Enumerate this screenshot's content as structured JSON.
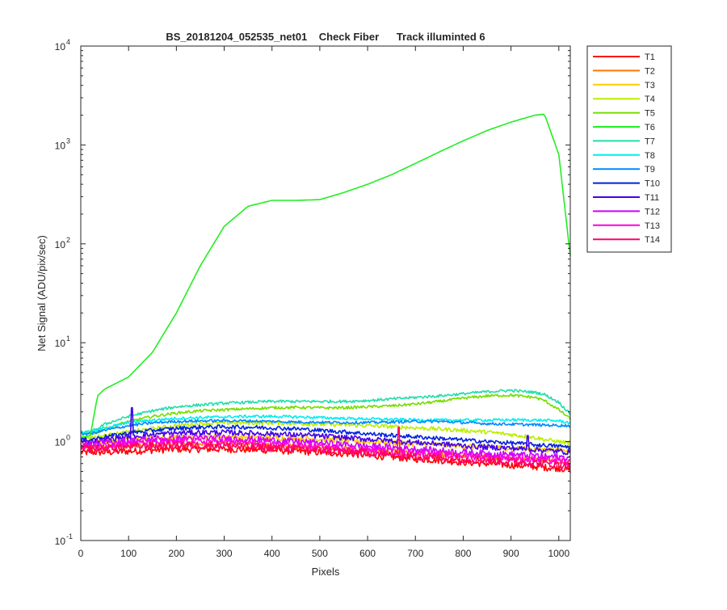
{
  "chart_data": {
    "type": "line",
    "title": "BS_20181204_052535_net01    Check Fiber      Track illuminted 6",
    "xlabel": "Pixels",
    "ylabel": "Net Signal (ADU/pix/sec)",
    "xlim": [
      0,
      1024
    ],
    "ylim": [
      0.1,
      10000
    ],
    "yscale": "log",
    "grid": false,
    "legend_position": "outside-top-right",
    "x_ticks": [
      0,
      100,
      200,
      300,
      400,
      500,
      600,
      700,
      800,
      900,
      1000
    ],
    "y_ticks": [
      {
        "base": "10",
        "exp": "-1",
        "value": 0.1
      },
      {
        "base": "10",
        "exp": "0",
        "value": 1
      },
      {
        "base": "10",
        "exp": "1",
        "value": 10
      },
      {
        "base": "10",
        "exp": "2",
        "value": 100
      },
      {
        "base": "10",
        "exp": "3",
        "value": 1000
      },
      {
        "base": "10",
        "exp": "4",
        "value": 10000
      }
    ],
    "x": [
      0,
      20,
      35,
      50,
      100,
      150,
      200,
      250,
      300,
      350,
      400,
      450,
      500,
      550,
      600,
      650,
      700,
      750,
      800,
      850,
      900,
      950,
      970,
      1000,
      1024
    ],
    "series": [
      {
        "name": "T1",
        "color": "#ff0000",
        "noise": 0.05,
        "values": [
          0.78,
          0.78,
          0.78,
          0.78,
          0.8,
          0.82,
          0.84,
          0.84,
          0.84,
          0.83,
          0.82,
          0.8,
          0.78,
          0.76,
          0.73,
          0.7,
          0.67,
          0.65,
          0.62,
          0.6,
          0.58,
          0.56,
          0.55,
          0.54,
          0.52
        ]
      },
      {
        "name": "T2",
        "color": "#ff7700",
        "noise": 0.04,
        "values": [
          0.88,
          0.88,
          0.88,
          0.88,
          0.9,
          0.92,
          0.94,
          0.95,
          0.95,
          0.94,
          0.92,
          0.9,
          0.88,
          0.86,
          0.83,
          0.8,
          0.77,
          0.75,
          0.72,
          0.7,
          0.68,
          0.66,
          0.65,
          0.63,
          0.62
        ]
      },
      {
        "name": "T3",
        "color": "#ffcc00",
        "noise": 0.04,
        "values": [
          1.0,
          1.0,
          1.0,
          1.0,
          1.05,
          1.08,
          1.1,
          1.12,
          1.12,
          1.11,
          1.1,
          1.08,
          1.06,
          1.03,
          1.0,
          0.98,
          0.95,
          0.93,
          0.9,
          0.88,
          0.86,
          0.84,
          0.83,
          0.82,
          0.8
        ]
      },
      {
        "name": "T4",
        "color": "#bbee00",
        "noise": 0.03,
        "values": [
          1.1,
          1.1,
          1.12,
          1.15,
          1.25,
          1.35,
          1.45,
          1.52,
          1.55,
          1.55,
          1.55,
          1.53,
          1.5,
          1.48,
          1.45,
          1.42,
          1.38,
          1.34,
          1.3,
          1.25,
          1.18,
          1.1,
          1.05,
          1.0,
          0.97
        ]
      },
      {
        "name": "T5",
        "color": "#77dd00",
        "noise": 0.02,
        "values": [
          1.2,
          1.2,
          1.25,
          1.35,
          1.6,
          1.8,
          1.95,
          2.05,
          2.1,
          2.15,
          2.2,
          2.22,
          2.2,
          2.2,
          2.25,
          2.3,
          2.4,
          2.55,
          2.75,
          2.9,
          2.95,
          2.8,
          2.6,
          2.1,
          1.7
        ]
      },
      {
        "name": "T6",
        "color": "#22ee22",
        "noise": 0.0,
        "values": [
          1.1,
          1.15,
          2.9,
          3.4,
          4.5,
          8.0,
          20.0,
          60.0,
          150,
          240,
          275,
          275,
          280,
          330,
          400,
          500,
          650,
          850,
          1100,
          1400,
          1700,
          2000,
          2050,
          800,
          75
        ]
      },
      {
        "name": "T7",
        "color": "#22ddaa",
        "noise": 0.02,
        "values": [
          1.25,
          1.25,
          1.35,
          1.5,
          1.8,
          2.05,
          2.25,
          2.35,
          2.45,
          2.5,
          2.55,
          2.55,
          2.55,
          2.55,
          2.6,
          2.7,
          2.8,
          2.9,
          3.05,
          3.2,
          3.3,
          3.15,
          3.0,
          2.5,
          1.9
        ]
      },
      {
        "name": "T8",
        "color": "#00eeee",
        "noise": 0.02,
        "values": [
          1.25,
          1.25,
          1.3,
          1.38,
          1.55,
          1.65,
          1.72,
          1.75,
          1.78,
          1.8,
          1.8,
          1.78,
          1.75,
          1.72,
          1.7,
          1.68,
          1.66,
          1.65,
          1.65,
          1.65,
          1.66,
          1.65,
          1.64,
          1.62,
          1.55
        ]
      },
      {
        "name": "T9",
        "color": "#0088ff",
        "noise": 0.02,
        "values": [
          1.2,
          1.2,
          1.25,
          1.3,
          1.45,
          1.55,
          1.6,
          1.62,
          1.63,
          1.62,
          1.6,
          1.58,
          1.57,
          1.56,
          1.56,
          1.58,
          1.6,
          1.6,
          1.56,
          1.52,
          1.5,
          1.48,
          1.47,
          1.46,
          1.45
        ]
      },
      {
        "name": "T10",
        "color": "#0022dd",
        "noise": 0.03,
        "values": [
          1.05,
          1.05,
          1.08,
          1.12,
          1.22,
          1.3,
          1.36,
          1.4,
          1.41,
          1.4,
          1.38,
          1.35,
          1.3,
          1.26,
          1.2,
          1.16,
          1.12,
          1.08,
          1.04,
          1.0,
          0.97,
          0.93,
          0.92,
          0.9,
          0.88
        ]
      },
      {
        "name": "T11",
        "color": "#4400ee",
        "noise": 0.04,
        "values": [
          1.0,
          1.0,
          1.02,
          1.05,
          1.12,
          1.18,
          1.22,
          1.24,
          1.24,
          1.22,
          1.2,
          1.17,
          1.14,
          1.1,
          1.06,
          1.02,
          0.98,
          0.95,
          0.91,
          0.88,
          0.86,
          0.83,
          0.82,
          0.8,
          0.78
        ]
      },
      {
        "name": "T12",
        "color": "#cc00ff",
        "noise": 0.05,
        "values": [
          0.95,
          0.95,
          0.96,
          0.98,
          1.02,
          1.06,
          1.08,
          1.09,
          1.08,
          1.06,
          1.03,
          1.0,
          0.97,
          0.94,
          0.9,
          0.87,
          0.84,
          0.81,
          0.78,
          0.76,
          0.74,
          0.72,
          0.71,
          0.7,
          0.68
        ]
      },
      {
        "name": "T13",
        "color": "#ff00dd",
        "noise": 0.05,
        "values": [
          0.9,
          0.9,
          0.91,
          0.92,
          0.96,
          0.98,
          1.0,
          1.01,
          1.0,
          0.98,
          0.95,
          0.92,
          0.89,
          0.86,
          0.83,
          0.8,
          0.77,
          0.75,
          0.72,
          0.7,
          0.68,
          0.66,
          0.65,
          0.64,
          0.62
        ]
      },
      {
        "name": "T14",
        "color": "#ff0066",
        "noise": 0.06,
        "values": [
          0.85,
          0.85,
          0.85,
          0.86,
          0.89,
          0.91,
          0.92,
          0.92,
          0.91,
          0.89,
          0.87,
          0.85,
          0.82,
          0.8,
          0.77,
          0.74,
          0.71,
          0.69,
          0.67,
          0.65,
          0.63,
          0.61,
          0.6,
          0.58,
          0.57
        ]
      }
    ],
    "spikes": [
      {
        "series": "T11",
        "x": 107,
        "y": 2.2
      },
      {
        "series": "T14",
        "x": 665,
        "y": 1.4
      },
      {
        "series": "T11",
        "x": 935,
        "y": 1.15
      }
    ]
  }
}
